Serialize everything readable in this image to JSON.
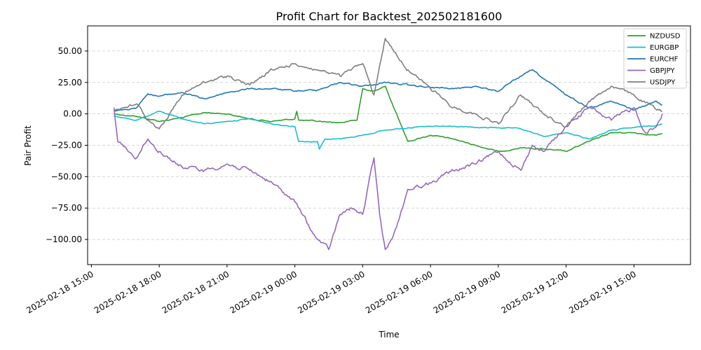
{
  "chart_data": {
    "type": "line",
    "title": "Profit Chart for Backtest_202502181600",
    "xlabel": "Time",
    "ylabel": "Pair Profit",
    "xlim": [
      "2025-02-18 14:50",
      "2025-02-19 17:30"
    ],
    "ylim": [
      -120,
      70
    ],
    "grid": "y-dashed",
    "legend_position": "top-right",
    "x_ticks": [
      "2025-02-18 15:00",
      "2025-02-18 18:00",
      "2025-02-18 21:00",
      "2025-02-19 00:00",
      "2025-02-19 03:00",
      "2025-02-19 06:00",
      "2025-02-19 09:00",
      "2025-02-19 12:00",
      "2025-02-19 15:00"
    ],
    "y_ticks": [
      "50.00",
      "25.00",
      "0.00",
      "−25.00",
      "−50.00",
      "−75.00",
      "−100.00"
    ],
    "y_tick_values": [
      50,
      25,
      0,
      -25,
      -50,
      -75,
      -100
    ],
    "series": [
      {
        "name": "NZDUSD",
        "color": "#2ca02c",
        "points": [
          [
            "2025-02-18 16:00",
            0
          ],
          [
            "2025-02-18 17:00",
            -2
          ],
          [
            "2025-02-18 18:00",
            -6
          ],
          [
            "2025-02-18 19:00",
            -3
          ],
          [
            "2025-02-18 20:00",
            1
          ],
          [
            "2025-02-18 21:00",
            0
          ],
          [
            "2025-02-18 22:00",
            -4
          ],
          [
            "2025-02-18 23:00",
            -6
          ],
          [
            "2025-02-19 00:00",
            -4
          ],
          [
            "2025-02-19 00:05",
            2
          ],
          [
            "2025-02-19 00:10",
            -5
          ],
          [
            "2025-02-19 01:00",
            -6
          ],
          [
            "2025-02-19 02:00",
            -7
          ],
          [
            "2025-02-19 02:45",
            -5
          ],
          [
            "2025-02-19 03:00",
            20
          ],
          [
            "2025-02-19 03:30",
            18
          ],
          [
            "2025-02-19 04:00",
            22
          ],
          [
            "2025-02-19 04:30",
            0
          ],
          [
            "2025-02-19 05:00",
            -22
          ],
          [
            "2025-02-19 06:00",
            -17
          ],
          [
            "2025-02-19 07:00",
            -20
          ],
          [
            "2025-02-19 08:00",
            -25
          ],
          [
            "2025-02-19 09:00",
            -30
          ],
          [
            "2025-02-19 10:00",
            -27
          ],
          [
            "2025-02-19 11:00",
            -28
          ],
          [
            "2025-02-19 12:00",
            -30
          ],
          [
            "2025-02-19 13:00",
            -22
          ],
          [
            "2025-02-19 14:00",
            -15
          ],
          [
            "2025-02-19 15:00",
            -15
          ],
          [
            "2025-02-19 16:00",
            -17
          ],
          [
            "2025-02-19 16:15",
            -16
          ]
        ]
      },
      {
        "name": "EURGBP",
        "color": "#17becf",
        "points": [
          [
            "2025-02-18 16:00",
            -2
          ],
          [
            "2025-02-18 17:00",
            -5
          ],
          [
            "2025-02-18 18:00",
            2
          ],
          [
            "2025-02-18 19:00",
            -4
          ],
          [
            "2025-02-18 20:00",
            -8
          ],
          [
            "2025-02-18 21:00",
            -6
          ],
          [
            "2025-02-18 22:00",
            -4
          ],
          [
            "2025-02-18 23:00",
            -8
          ],
          [
            "2025-02-19 00:00",
            -10
          ],
          [
            "2025-02-19 00:10",
            -22
          ],
          [
            "2025-02-19 01:00",
            -22
          ],
          [
            "2025-02-19 01:05",
            -28
          ],
          [
            "2025-02-19 01:20",
            -20
          ],
          [
            "2025-02-19 02:00",
            -20
          ],
          [
            "2025-02-19 03:00",
            -17
          ],
          [
            "2025-02-19 04:00",
            -13
          ],
          [
            "2025-02-19 05:00",
            -11
          ],
          [
            "2025-02-19 06:00",
            -10
          ],
          [
            "2025-02-19 07:00",
            -10
          ],
          [
            "2025-02-19 08:00",
            -11
          ],
          [
            "2025-02-19 09:00",
            -11
          ],
          [
            "2025-02-19 10:00",
            -12
          ],
          [
            "2025-02-19 11:00",
            -18
          ],
          [
            "2025-02-19 12:00",
            -15
          ],
          [
            "2025-02-19 13:00",
            -20
          ],
          [
            "2025-02-19 14:00",
            -13
          ],
          [
            "2025-02-19 15:00",
            -11
          ],
          [
            "2025-02-19 16:00",
            -9
          ],
          [
            "2025-02-19 16:15",
            -8
          ]
        ]
      },
      {
        "name": "EURCHF",
        "color": "#1f77b4",
        "points": [
          [
            "2025-02-18 16:00",
            2
          ],
          [
            "2025-02-18 17:00",
            5
          ],
          [
            "2025-02-18 17:30",
            16
          ],
          [
            "2025-02-18 18:00",
            14
          ],
          [
            "2025-02-18 19:00",
            17
          ],
          [
            "2025-02-18 20:00",
            12
          ],
          [
            "2025-02-18 21:00",
            17
          ],
          [
            "2025-02-18 22:00",
            20
          ],
          [
            "2025-02-18 23:00",
            20
          ],
          [
            "2025-02-19 00:00",
            18
          ],
          [
            "2025-02-19 01:00",
            19
          ],
          [
            "2025-02-19 02:00",
            25
          ],
          [
            "2025-02-19 03:00",
            22
          ],
          [
            "2025-02-19 04:00",
            25
          ],
          [
            "2025-02-19 05:00",
            23
          ],
          [
            "2025-02-19 06:00",
            21
          ],
          [
            "2025-02-19 07:00",
            20
          ],
          [
            "2025-02-19 08:00",
            22
          ],
          [
            "2025-02-19 09:00",
            18
          ],
          [
            "2025-02-19 10:00",
            30
          ],
          [
            "2025-02-19 10:30",
            35
          ],
          [
            "2025-02-19 11:00",
            28
          ],
          [
            "2025-02-19 12:00",
            15
          ],
          [
            "2025-02-19 13:00",
            5
          ],
          [
            "2025-02-19 14:00",
            10
          ],
          [
            "2025-02-19 15:00",
            3
          ],
          [
            "2025-02-19 16:00",
            10
          ],
          [
            "2025-02-19 16:15",
            7
          ]
        ]
      },
      {
        "name": "GBPJPY",
        "color": "#9467bd",
        "points": [
          [
            "2025-02-18 16:00",
            5
          ],
          [
            "2025-02-18 16:10",
            -22
          ],
          [
            "2025-02-18 17:00",
            -35
          ],
          [
            "2025-02-18 17:30",
            -20
          ],
          [
            "2025-02-18 18:00",
            -30
          ],
          [
            "2025-02-18 19:00",
            -42
          ],
          [
            "2025-02-18 20:00",
            -45
          ],
          [
            "2025-02-18 21:00",
            -40
          ],
          [
            "2025-02-18 22:00",
            -45
          ],
          [
            "2025-02-18 23:00",
            -55
          ],
          [
            "2025-02-19 00:00",
            -70
          ],
          [
            "2025-02-19 00:30",
            -85
          ],
          [
            "2025-02-19 01:00",
            -100
          ],
          [
            "2025-02-19 01:30",
            -108
          ],
          [
            "2025-02-19 02:00",
            -80
          ],
          [
            "2025-02-19 02:30",
            -75
          ],
          [
            "2025-02-19 03:00",
            -80
          ],
          [
            "2025-02-19 03:30",
            -35
          ],
          [
            "2025-02-19 03:45",
            -80
          ],
          [
            "2025-02-19 04:00",
            -108
          ],
          [
            "2025-02-19 04:30",
            -90
          ],
          [
            "2025-02-19 05:00",
            -60
          ],
          [
            "2025-02-19 06:00",
            -55
          ],
          [
            "2025-02-19 07:00",
            -45
          ],
          [
            "2025-02-19 08:00",
            -40
          ],
          [
            "2025-02-19 09:00",
            -30
          ],
          [
            "2025-02-19 10:00",
            -45
          ],
          [
            "2025-02-19 10:30",
            -25
          ],
          [
            "2025-02-19 11:00",
            -30
          ],
          [
            "2025-02-19 12:00",
            -10
          ],
          [
            "2025-02-19 13:00",
            5
          ],
          [
            "2025-02-19 14:00",
            -5
          ],
          [
            "2025-02-19 15:00",
            5
          ],
          [
            "2025-02-19 15:30",
            -15
          ],
          [
            "2025-02-19 16:00",
            -10
          ],
          [
            "2025-02-19 16:15",
            0
          ]
        ]
      },
      {
        "name": "USDJPY",
        "color": "#7f7f7f",
        "points": [
          [
            "2025-02-18 16:00",
            3
          ],
          [
            "2025-02-18 17:00",
            8
          ],
          [
            "2025-02-18 17:30",
            -5
          ],
          [
            "2025-02-18 18:00",
            -12
          ],
          [
            "2025-02-18 19:00",
            15
          ],
          [
            "2025-02-18 20:00",
            25
          ],
          [
            "2025-02-18 21:00",
            30
          ],
          [
            "2025-02-18 22:00",
            23
          ],
          [
            "2025-02-18 23:00",
            35
          ],
          [
            "2025-02-19 00:00",
            40
          ],
          [
            "2025-02-19 01:00",
            35
          ],
          [
            "2025-02-19 02:00",
            30
          ],
          [
            "2025-02-19 03:00",
            40
          ],
          [
            "2025-02-19 03:30",
            15
          ],
          [
            "2025-02-19 04:00",
            60
          ],
          [
            "2025-02-19 05:00",
            35
          ],
          [
            "2025-02-19 06:00",
            20
          ],
          [
            "2025-02-19 07:00",
            5
          ],
          [
            "2025-02-19 08:00",
            0
          ],
          [
            "2025-02-19 09:00",
            -8
          ],
          [
            "2025-02-19 10:00",
            15
          ],
          [
            "2025-02-19 11:00",
            0
          ],
          [
            "2025-02-19 12:00",
            -10
          ],
          [
            "2025-02-19 13:00",
            10
          ],
          [
            "2025-02-19 14:00",
            22
          ],
          [
            "2025-02-19 15:00",
            15
          ],
          [
            "2025-02-19 16:00",
            3
          ],
          [
            "2025-02-19 16:15",
            2
          ]
        ]
      }
    ]
  }
}
